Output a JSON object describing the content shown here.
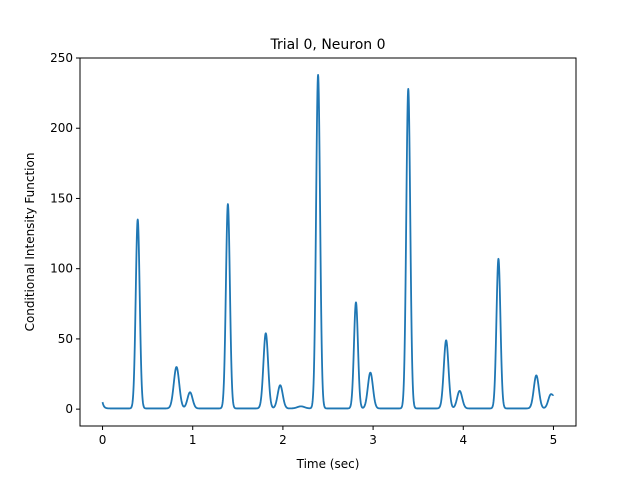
{
  "chart_data": {
    "type": "line",
    "title": "Trial 0, Neuron 0",
    "xlabel": "Time (sec)",
    "ylabel": "Conditional Intensity Function",
    "xlim": [
      -0.25,
      5.25
    ],
    "ylim": [
      -12,
      250
    ],
    "xticks": [
      0,
      1,
      2,
      3,
      4,
      5
    ],
    "xtick_labels": [
      "0",
      "1",
      "2",
      "3",
      "4",
      "5"
    ],
    "yticks": [
      0,
      50,
      100,
      150,
      200,
      250
    ],
    "ytick_labels": [
      "0",
      "50",
      "100",
      "150",
      "200",
      "250"
    ],
    "grid": false,
    "line_color": "#1f77b4",
    "baseline": 0.5,
    "start_value": 5,
    "end_value": 5,
    "peaks": [
      {
        "t": 0.39,
        "peak": 135,
        "width": 0.022
      },
      {
        "t": 0.82,
        "peak": 30,
        "width": 0.03
      },
      {
        "t": 0.97,
        "peak": 12,
        "width": 0.028
      },
      {
        "t": 1.39,
        "peak": 146,
        "width": 0.022
      },
      {
        "t": 1.81,
        "peak": 54,
        "width": 0.026
      },
      {
        "t": 1.97,
        "peak": 17,
        "width": 0.028
      },
      {
        "t": 2.2,
        "peak": 2,
        "width": 0.04
      },
      {
        "t": 2.39,
        "peak": 238,
        "width": 0.022
      },
      {
        "t": 2.81,
        "peak": 76,
        "width": 0.022
      },
      {
        "t": 2.97,
        "peak": 26,
        "width": 0.028
      },
      {
        "t": 3.39,
        "peak": 228,
        "width": 0.022
      },
      {
        "t": 3.81,
        "peak": 49,
        "width": 0.026
      },
      {
        "t": 3.96,
        "peak": 13,
        "width": 0.028
      },
      {
        "t": 4.39,
        "peak": 107,
        "width": 0.022
      },
      {
        "t": 4.81,
        "peak": 24,
        "width": 0.028
      },
      {
        "t": 4.97,
        "peak": 10,
        "width": 0.028
      }
    ]
  }
}
